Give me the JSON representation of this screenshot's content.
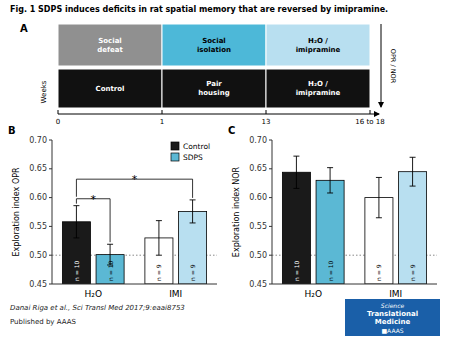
{
  "title": "Fig. 1 SDPS induces deficits in rat spatial memory that are reversed by imipramine.",
  "chart_data": [
    {
      "type": "diagram",
      "title": "A",
      "xlabel": "Weeks",
      "ylabel": "OPR / NOR",
      "categories": [
        "0",
        "1",
        "13",
        "16 to 18"
      ],
      "rows": [
        {
          "labels": [
            "Social\ndefeat",
            "Social\nisolation",
            "H₂O /\nimipramine"
          ],
          "colors": [
            "#909090",
            "#4db8d8",
            "#b8dff0"
          ]
        },
        {
          "labels": [
            "Control",
            "Pair\nhousing",
            "H₂O /\nimipramine"
          ],
          "color": "#111111"
        }
      ]
    },
    {
      "type": "bar",
      "title": "B",
      "ylabel": "Exploration index OPR",
      "categories": [
        "H₂O",
        "IMI"
      ],
      "series": [
        {
          "name": "Control",
          "color": "#1a1a1a",
          "colors": [
            "#1a1a1a",
            "#ffffff"
          ],
          "values": [
            0.558,
            0.53
          ],
          "errors": [
            0.028,
            0.03
          ],
          "n_labels": [
            "n = 10",
            "n = 9"
          ]
        },
        {
          "name": "SDPS",
          "color": "#5bb8d4",
          "colors": [
            "#5bb8d4",
            "#b8dff0"
          ],
          "values": [
            0.501,
            0.576
          ],
          "errors": [
            0.018,
            0.02
          ],
          "n_labels": [
            "n = 10",
            "n = 9"
          ]
        }
      ],
      "ylim": [
        0.45,
        0.7
      ],
      "yticks": [
        0.45,
        {
          "value": 0.5,
          "label": "0.50"
        },
        0.55,
        {
          "value": 0.6,
          "label": "0.60"
        },
        0.65,
        {
          "value": 0.7,
          "label": "0.70"
        }
      ],
      "hline": 0.5,
      "legend": "upper right",
      "annotations": [
        {
          "text": "*",
          "y": 0.598,
          "from": [
            0,
            0
          ],
          "to": [
            0,
            1
          ]
        },
        {
          "text": "*",
          "y": 0.632,
          "from": [
            0,
            0
          ],
          "to": [
            1,
            1
          ]
        }
      ]
    },
    {
      "type": "bar",
      "title": "C",
      "ylabel": "Exploration index NOR",
      "categories": [
        "H₂O",
        "IMI"
      ],
      "series": [
        {
          "colors": [
            "#1a1a1a",
            "#ffffff"
          ],
          "values": [
            0.644,
            0.6
          ],
          "errors": [
            0.028,
            0.035
          ],
          "n_labels": [
            "n = 10",
            "n = 9"
          ]
        },
        {
          "colors": [
            "#5bb8d4",
            "#b8dff0"
          ],
          "values": [
            0.63,
            0.645
          ],
          "errors": [
            0.022,
            0.025
          ],
          "n_labels": [
            "n = 10",
            "n = 9"
          ]
        }
      ],
      "ylim": [
        0.45,
        0.7
      ],
      "yticks": [
        0.45,
        {
          "value": 0.5,
          "label": "0.50"
        },
        0.55,
        {
          "value": 0.6,
          "label": "0.60"
        },
        0.65,
        {
          "value": 0.7,
          "label": "0.70"
        }
      ],
      "hline": 0.5,
      "legend": false
    }
  ],
  "citation": "Danai Riga et al., Sci Transl Med 2017;9:eaai8753",
  "publisher": "Published by AAAS",
  "logo": {
    "texts": [
      "Science",
      "Translational",
      "Medicine",
      "■AAAS"
    ],
    "color": "#1a5fa8"
  }
}
